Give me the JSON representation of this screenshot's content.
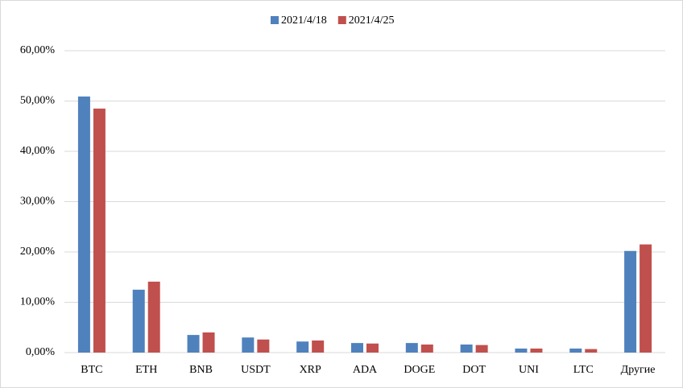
{
  "chart_data": {
    "type": "bar",
    "categories": [
      "BTC",
      "ETH",
      "BNB",
      "USDT",
      "XRP",
      "ADA",
      "DOGE",
      "DOT",
      "UNI",
      "LTC",
      "Другие"
    ],
    "series": [
      {
        "name": "2021/4/18",
        "color": "#4f81bd",
        "values": [
          50.9,
          12.5,
          3.5,
          3.0,
          2.2,
          1.9,
          1.9,
          1.6,
          0.8,
          0.8,
          20.2
        ]
      },
      {
        "name": "2021/4/25",
        "color": "#c0504d",
        "values": [
          48.5,
          14.1,
          4.0,
          2.6,
          2.4,
          1.8,
          1.6,
          1.5,
          0.8,
          0.7,
          21.5
        ]
      }
    ],
    "ylim": [
      0,
      60
    ],
    "yticks": [
      {
        "value": 0,
        "label": "0,00%"
      },
      {
        "value": 10,
        "label": "10,00%"
      },
      {
        "value": 20,
        "label": "20,00%"
      },
      {
        "value": 30,
        "label": "30,00%"
      },
      {
        "value": 40,
        "label": "40,00%"
      },
      {
        "value": 50,
        "label": "50,00%"
      },
      {
        "value": 60,
        "label": "60,00%"
      }
    ],
    "grid": true,
    "legend": "top"
  }
}
